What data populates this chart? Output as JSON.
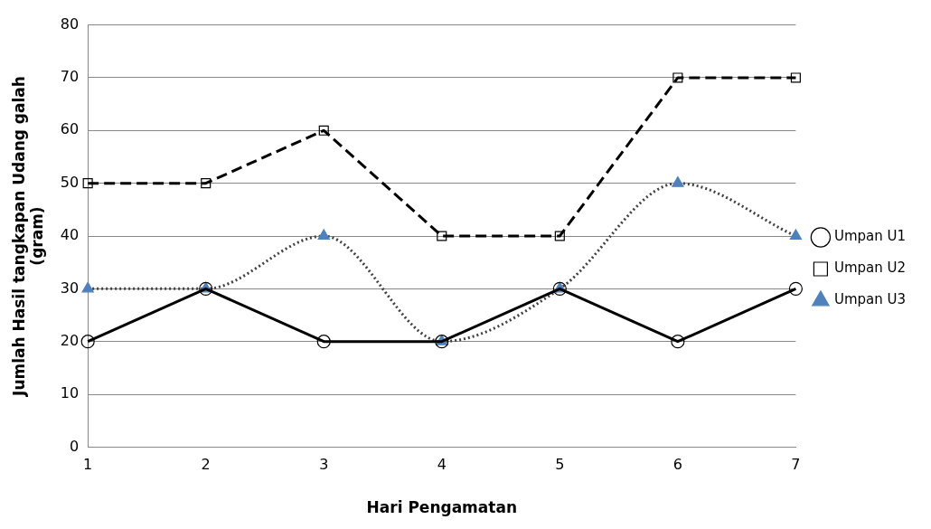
{
  "chart_data": {
    "type": "line",
    "xlabel": "Hari Pengamatan",
    "ylabel": "Jumlah Hasil tangkapan Udang galah (gram)",
    "categories": [
      "1",
      "2",
      "3",
      "4",
      "5",
      "6",
      "7"
    ],
    "series": [
      {
        "name": "Umpan U1",
        "color": "#000000",
        "values": [
          20,
          30,
          20,
          20,
          30,
          20,
          30
        ],
        "marker": "circle",
        "line_style": "solid"
      },
      {
        "name": "Umpan U2",
        "color": "#000000",
        "values": [
          50,
          50,
          60,
          40,
          40,
          70,
          70
        ],
        "marker": "square",
        "line_style": "dashed"
      },
      {
        "name": "Umpan U3",
        "color": "#404040",
        "colors": [
          "#4f81bd",
          "#4f81bd",
          "#4f81bd",
          "#4f81bd",
          "#4f81bd",
          "#4f81bd",
          "#4f81bd"
        ],
        "values": [
          30,
          30,
          40,
          20,
          30,
          50,
          40
        ],
        "marker": "triangle",
        "line_style": "dotted"
      }
    ],
    "ylim": [
      0,
      80
    ],
    "yticks": [
      0,
      10,
      20,
      30,
      40,
      50,
      60,
      70,
      80
    ],
    "grid": "y",
    "legend": "right"
  }
}
